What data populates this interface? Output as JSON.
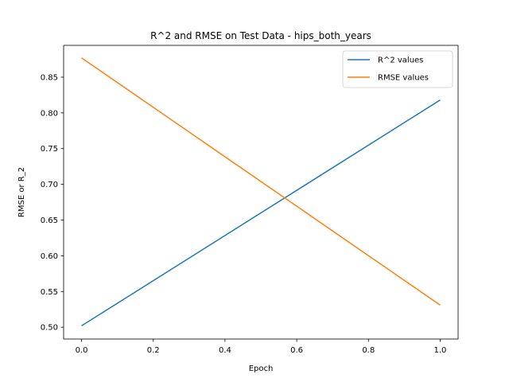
{
  "chart_data": {
    "type": "line",
    "title": "R^2 and RMSE on Test Data - hips_both_years",
    "xlabel": "Epoch",
    "ylabel": "RMSE or R_2",
    "xlim": [
      -0.05,
      1.05
    ],
    "ylim": [
      0.4835,
      0.8945
    ],
    "x_ticks": [
      0.0,
      0.2,
      0.4,
      0.6,
      0.8,
      1.0
    ],
    "x_tick_labels": [
      "0.0",
      "0.2",
      "0.4",
      "0.6",
      "0.8",
      "1.0"
    ],
    "y_ticks": [
      0.5,
      0.55,
      0.6,
      0.65,
      0.7,
      0.75,
      0.8,
      0.85
    ],
    "y_tick_labels": [
      "0.50",
      "0.55",
      "0.60",
      "0.65",
      "0.70",
      "0.75",
      "0.80",
      "0.85"
    ],
    "grid": false,
    "legend_position": "top-right",
    "series": [
      {
        "name": "R^2 values",
        "color": "#1f77b4",
        "x": [
          0,
          1
        ],
        "y": [
          0.502,
          0.818
        ]
      },
      {
        "name": "RMSE values",
        "color": "#ff7f0e",
        "x": [
          0,
          1
        ],
        "y": [
          0.877,
          0.531
        ]
      }
    ]
  }
}
